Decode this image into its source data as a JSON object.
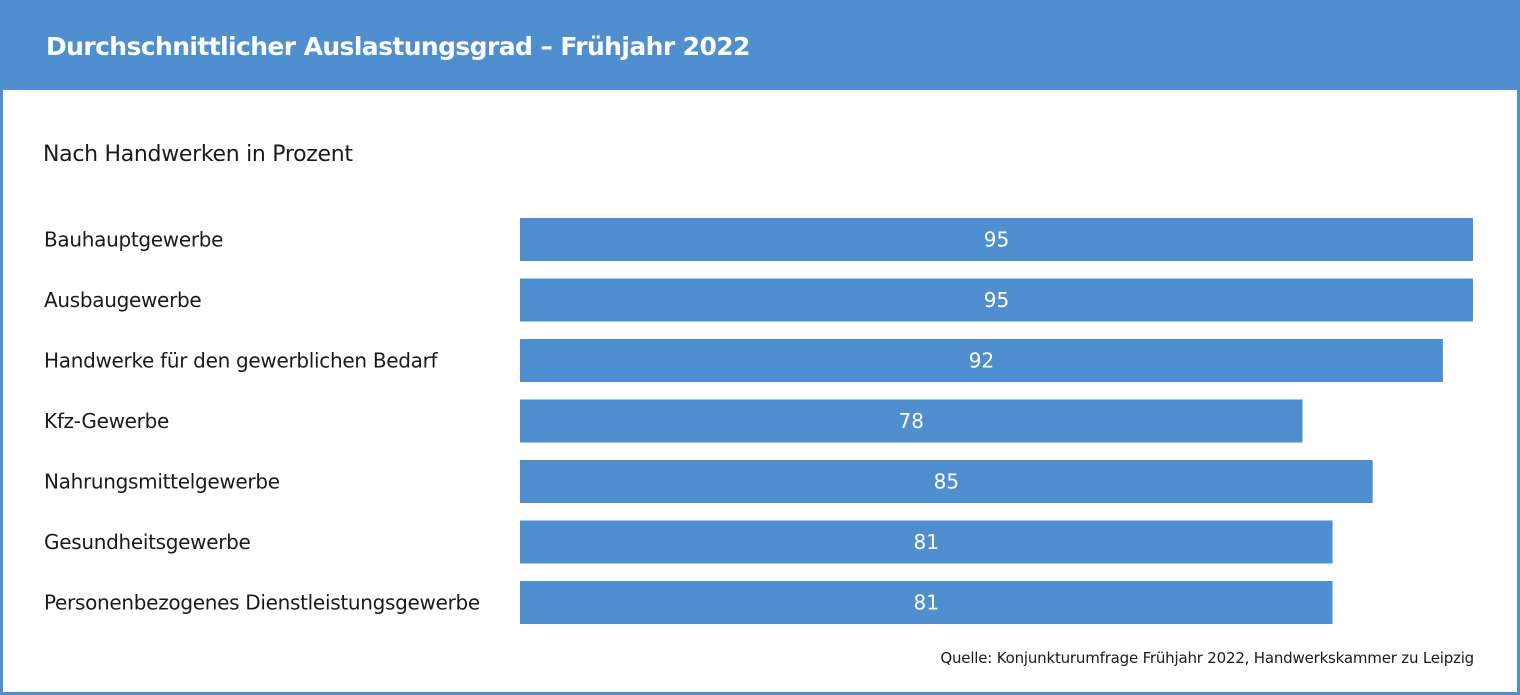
{
  "header": {
    "title": "Durchschnittlicher Auslastungsgrad – Frühjahr 2022"
  },
  "subtitle": "Nach Handwerken in Prozent",
  "source": "Quelle: Konjunkturumfrage Frühjahr 2022, Handwerkskammer zu Leipzig",
  "colors": {
    "accent": "#4f8fcf",
    "bar": "#4f8fcf",
    "text": "#1a1a1a",
    "value_text": "#ffffff"
  },
  "chart_data": {
    "type": "bar",
    "orientation": "horizontal",
    "categories": [
      "Bauhauptgewerbe",
      "Ausbaugewerbe",
      "Handwerke für den gewerblichen Bedarf",
      "Kfz-Gewerbe",
      "Nahrungsmittelgewerbe",
      "Gesundheitsgewerbe",
      "Personenbezogenes Dienstleistungsgewerbe"
    ],
    "values": [
      95,
      95,
      92,
      78,
      85,
      81,
      81
    ],
    "value_labels": [
      "95",
      "95",
      "92",
      "78",
      "85",
      "81",
      "81"
    ],
    "title": "Durchschnittlicher Auslastungsgrad – Frühjahr 2022",
    "subtitle": "Nach Handwerken in Prozent",
    "xlim": [
      0,
      95
    ],
    "grid": false,
    "data_labels": "centered inside bars"
  }
}
